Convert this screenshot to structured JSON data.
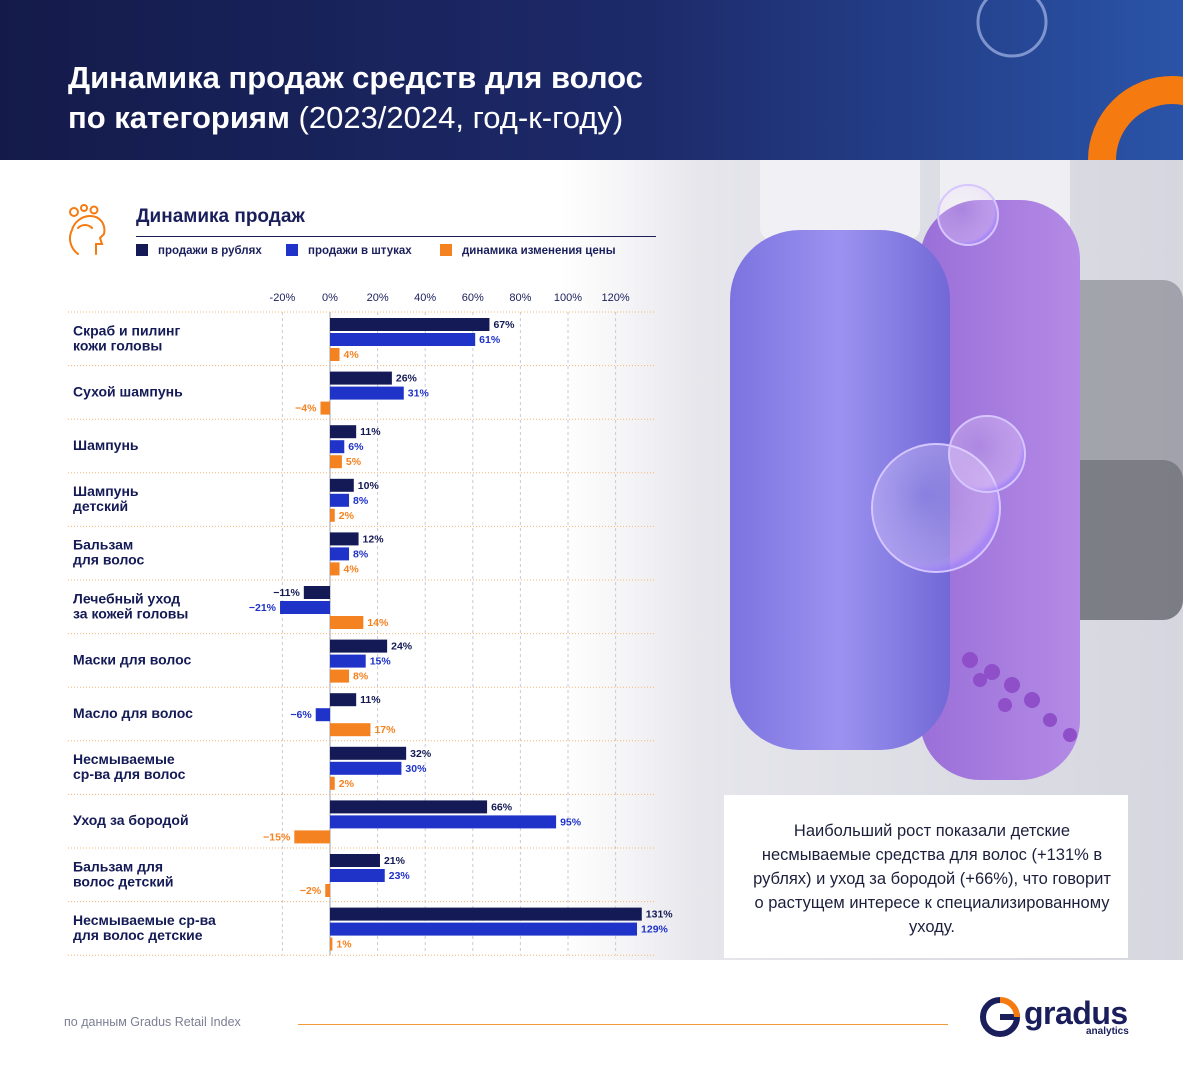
{
  "header": {
    "title_bold_1": "Динамика продаж средств для волос",
    "title_bold_2": "по категориям",
    "title_light": " (2023/2024, год-к-году)"
  },
  "chart_heading": "Динамика продаж",
  "legend": {
    "rub": "продажи в рублях",
    "units": "продажи в штуках",
    "price": "динамика изменения цены"
  },
  "colors": {
    "rub": "#141a55",
    "units": "#1f33c9",
    "price": "#f58220",
    "orange_accent": "#f57a10"
  },
  "chart_data": {
    "type": "bar",
    "orientation": "horizontal",
    "title": "Динамика продаж",
    "xlim": [
      -20,
      130
    ],
    "xticks": [
      -20,
      0,
      20,
      40,
      60,
      80,
      100,
      120
    ],
    "xtick_labels": [
      "-20%",
      "0%",
      "20%",
      "40%",
      "60%",
      "80%",
      "100%",
      "120%"
    ],
    "categories": [
      [
        "Скраб и пилинг",
        "кожи головы"
      ],
      [
        "Сухой шампунь"
      ],
      [
        "Шампунь"
      ],
      [
        "Шампунь",
        "детский"
      ],
      [
        "Бальзам",
        "для волос"
      ],
      [
        "Лечебный уход",
        "за кожей головы"
      ],
      [
        "Маски для волос"
      ],
      [
        "Масло для волос"
      ],
      [
        "Несмываемые",
        "ср-ва для волос"
      ],
      [
        "Уход за бородой"
      ],
      [
        "Бальзам для",
        "волос детский"
      ],
      [
        "Несмываемые ср-ва",
        "для волос детские"
      ]
    ],
    "series": [
      {
        "name": "продажи в рублях",
        "values": [
          67,
          26,
          11,
          10,
          12,
          -11,
          24,
          11,
          32,
          66,
          21,
          131
        ]
      },
      {
        "name": "продажи в штуках",
        "values": [
          61,
          31,
          6,
          8,
          8,
          -21,
          15,
          -6,
          30,
          95,
          23,
          129
        ]
      },
      {
        "name": "динамика изменения цены",
        "values": [
          4,
          -4,
          5,
          2,
          4,
          14,
          8,
          17,
          2,
          -15,
          -2,
          1
        ]
      }
    ],
    "value_suffix": "%"
  },
  "note": "Наибольший рост показали детские несмываемые средства для волос (+131% в рублях) и уход за бородой (+66%), что говорит о растущем интересе к специализированному уходу.",
  "footer": {
    "source": "по данным Gradus Retail Index",
    "logo_word": "gradus",
    "logo_sub": "analytics"
  }
}
